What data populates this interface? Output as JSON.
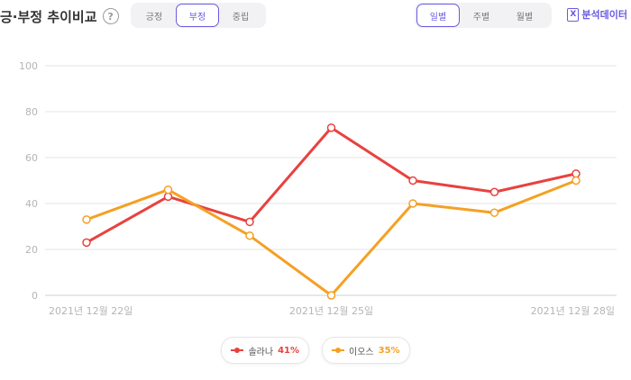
{
  "header": {
    "title": "긍·부정 추이비교",
    "help_glyph": "?",
    "sentiment_tabs": [
      "긍정",
      "부정",
      "중립"
    ],
    "sentiment_active": 1,
    "period_tabs": [
      "일별",
      "주별",
      "월별"
    ],
    "period_active": 0,
    "analysis_label": "분석데이터",
    "analysis_icon_glyph": "X"
  },
  "colors": {
    "accent": "#6a5ae0",
    "series_red": "#e8423f",
    "series_orange": "#f5a023"
  },
  "chart_data": {
    "type": "line",
    "x": [
      "2021-12-22",
      "2021-12-23",
      "2021-12-24",
      "2021-12-25",
      "2021-12-26",
      "2021-12-27",
      "2021-12-28"
    ],
    "x_tick_labels": [
      "2021년 12월 22일",
      "2021년 12월 25일",
      "2021년 12월 28일"
    ],
    "y_ticks": [
      "0",
      "20",
      "40",
      "60",
      "80",
      "100"
    ],
    "ylim": [
      0,
      100
    ],
    "grid": true,
    "legend_position": "bottom",
    "series": [
      {
        "name": "솔라나",
        "percent_label": "41%",
        "color": "#e8423f",
        "values": [
          23,
          43,
          32,
          73,
          50,
          45,
          53
        ]
      },
      {
        "name": "이오스",
        "percent_label": "35%",
        "color": "#f5a023",
        "values": [
          33,
          46,
          26,
          0,
          40,
          36,
          50
        ]
      }
    ]
  }
}
